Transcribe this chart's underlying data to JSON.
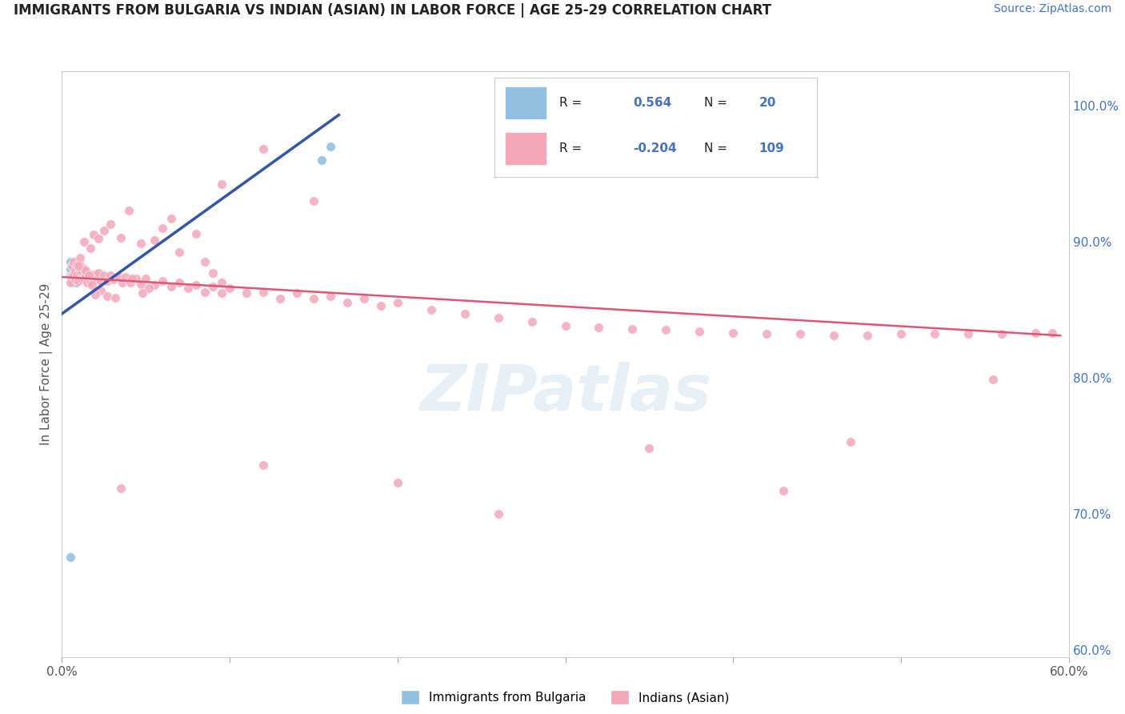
{
  "title": "IMMIGRANTS FROM BULGARIA VS INDIAN (ASIAN) IN LABOR FORCE | AGE 25-29 CORRELATION CHART",
  "source": "Source: ZipAtlas.com",
  "ylabel": "In Labor Force | Age 25-29",
  "xlim": [
    0.0,
    0.6
  ],
  "ylim": [
    0.595,
    1.025
  ],
  "legend_r_bulgaria": "0.564",
  "legend_n_bulgaria": "20",
  "legend_r_indian": "-0.204",
  "legend_n_indian": "109",
  "bulgaria_color": "#92c0e0",
  "indian_color": "#f4a7b9",
  "trendline_bulgaria_color": "#3355aa",
  "trendline_indian_color": "#e05575",
  "legend_label_bulgaria": "Immigrants from Bulgaria",
  "legend_label_indian": "Indians (Asian)",
  "background_color": "#ffffff",
  "grid_color": "#dddddd",
  "bulgaria_x": [
    0.005,
    0.005,
    0.005,
    0.006,
    0.006,
    0.007,
    0.007,
    0.007,
    0.008,
    0.009,
    0.009,
    0.01,
    0.01,
    0.011,
    0.012,
    0.012,
    0.013,
    0.014,
    0.155,
    0.16
  ],
  "bulgaria_y": [
    0.875,
    0.88,
    0.885,
    0.875,
    0.882,
    0.87,
    0.875,
    0.882,
    0.878,
    0.87,
    0.88,
    0.873,
    0.878,
    0.876,
    0.875,
    0.881,
    0.876,
    0.873,
    0.96,
    0.97
  ],
  "bulgaria_low_x": [
    0.005
  ],
  "bulgaria_low_y": [
    0.668
  ],
  "indian_x": [
    0.005,
    0.006,
    0.006,
    0.007,
    0.007,
    0.008,
    0.008,
    0.009,
    0.009,
    0.01,
    0.011,
    0.011,
    0.012,
    0.012,
    0.013,
    0.013,
    0.014,
    0.015,
    0.016,
    0.017,
    0.018,
    0.019,
    0.02,
    0.021,
    0.022,
    0.023,
    0.025,
    0.027,
    0.029,
    0.031,
    0.034,
    0.036,
    0.038,
    0.041,
    0.044,
    0.047,
    0.05,
    0.055,
    0.06,
    0.065,
    0.07,
    0.075,
    0.08,
    0.085,
    0.09,
    0.095,
    0.1,
    0.11,
    0.12,
    0.13,
    0.14,
    0.15,
    0.16,
    0.17,
    0.18,
    0.19,
    0.2,
    0.22,
    0.24,
    0.26,
    0.28,
    0.3,
    0.32,
    0.34,
    0.36,
    0.38,
    0.4,
    0.42,
    0.44,
    0.46,
    0.48,
    0.5,
    0.52,
    0.54,
    0.56,
    0.58,
    0.59
  ],
  "indian_y": [
    0.87,
    0.875,
    0.882,
    0.876,
    0.885,
    0.872,
    0.879,
    0.876,
    0.883,
    0.871,
    0.878,
    0.883,
    0.872,
    0.879,
    0.873,
    0.88,
    0.875,
    0.87,
    0.876,
    0.871,
    0.876,
    0.873,
    0.876,
    0.872,
    0.877,
    0.871,
    0.875,
    0.871,
    0.875,
    0.872,
    0.874,
    0.87,
    0.874,
    0.87,
    0.873,
    0.869,
    0.873,
    0.868,
    0.871,
    0.867,
    0.87,
    0.866,
    0.868,
    0.863,
    0.867,
    0.862,
    0.866,
    0.862,
    0.863,
    0.858,
    0.862,
    0.858,
    0.86,
    0.855,
    0.858,
    0.853,
    0.855,
    0.85,
    0.847,
    0.844,
    0.841,
    0.838,
    0.837,
    0.836,
    0.835,
    0.834,
    0.833,
    0.832,
    0.832,
    0.831,
    0.831,
    0.832,
    0.832,
    0.832,
    0.832,
    0.833,
    0.833
  ],
  "indian_high_y": [
    0.968,
    0.942,
    0.93,
    0.923,
    0.917,
    0.913,
    0.91,
    0.908,
    0.906,
    0.905,
    0.903,
    0.902,
    0.901,
    0.9,
    0.899,
    0.895,
    0.892,
    0.888,
    0.885,
    0.882,
    0.879,
    0.877,
    0.875,
    0.873,
    0.87,
    0.868,
    0.866,
    0.864,
    0.862,
    0.861,
    0.86,
    0.859
  ],
  "indian_high_x": [
    0.12,
    0.095,
    0.15,
    0.04,
    0.065,
    0.029,
    0.06,
    0.025,
    0.08,
    0.019,
    0.035,
    0.022,
    0.055,
    0.013,
    0.047,
    0.017,
    0.07,
    0.011,
    0.085,
    0.01,
    0.014,
    0.09,
    0.016,
    0.042,
    0.095,
    0.018,
    0.052,
    0.023,
    0.048,
    0.02,
    0.027,
    0.032
  ],
  "indian_extra_low": [
    [
      0.035,
      0.719
    ],
    [
      0.12,
      0.736
    ],
    [
      0.2,
      0.723
    ],
    [
      0.43,
      0.717
    ],
    [
      0.26,
      0.7
    ],
    [
      0.35,
      0.748
    ],
    [
      0.47,
      0.753
    ],
    [
      0.555,
      0.799
    ]
  ],
  "trendline_bulgaria_x0": 0.0,
  "trendline_bulgaria_x1": 0.165,
  "trendline_bulgaria_y0": 0.847,
  "trendline_bulgaria_y1": 0.993,
  "trendline_indian_x0": 0.0,
  "trendline_indian_x1": 0.595,
  "trendline_indian_y0": 0.874,
  "trendline_indian_y1": 0.831
}
